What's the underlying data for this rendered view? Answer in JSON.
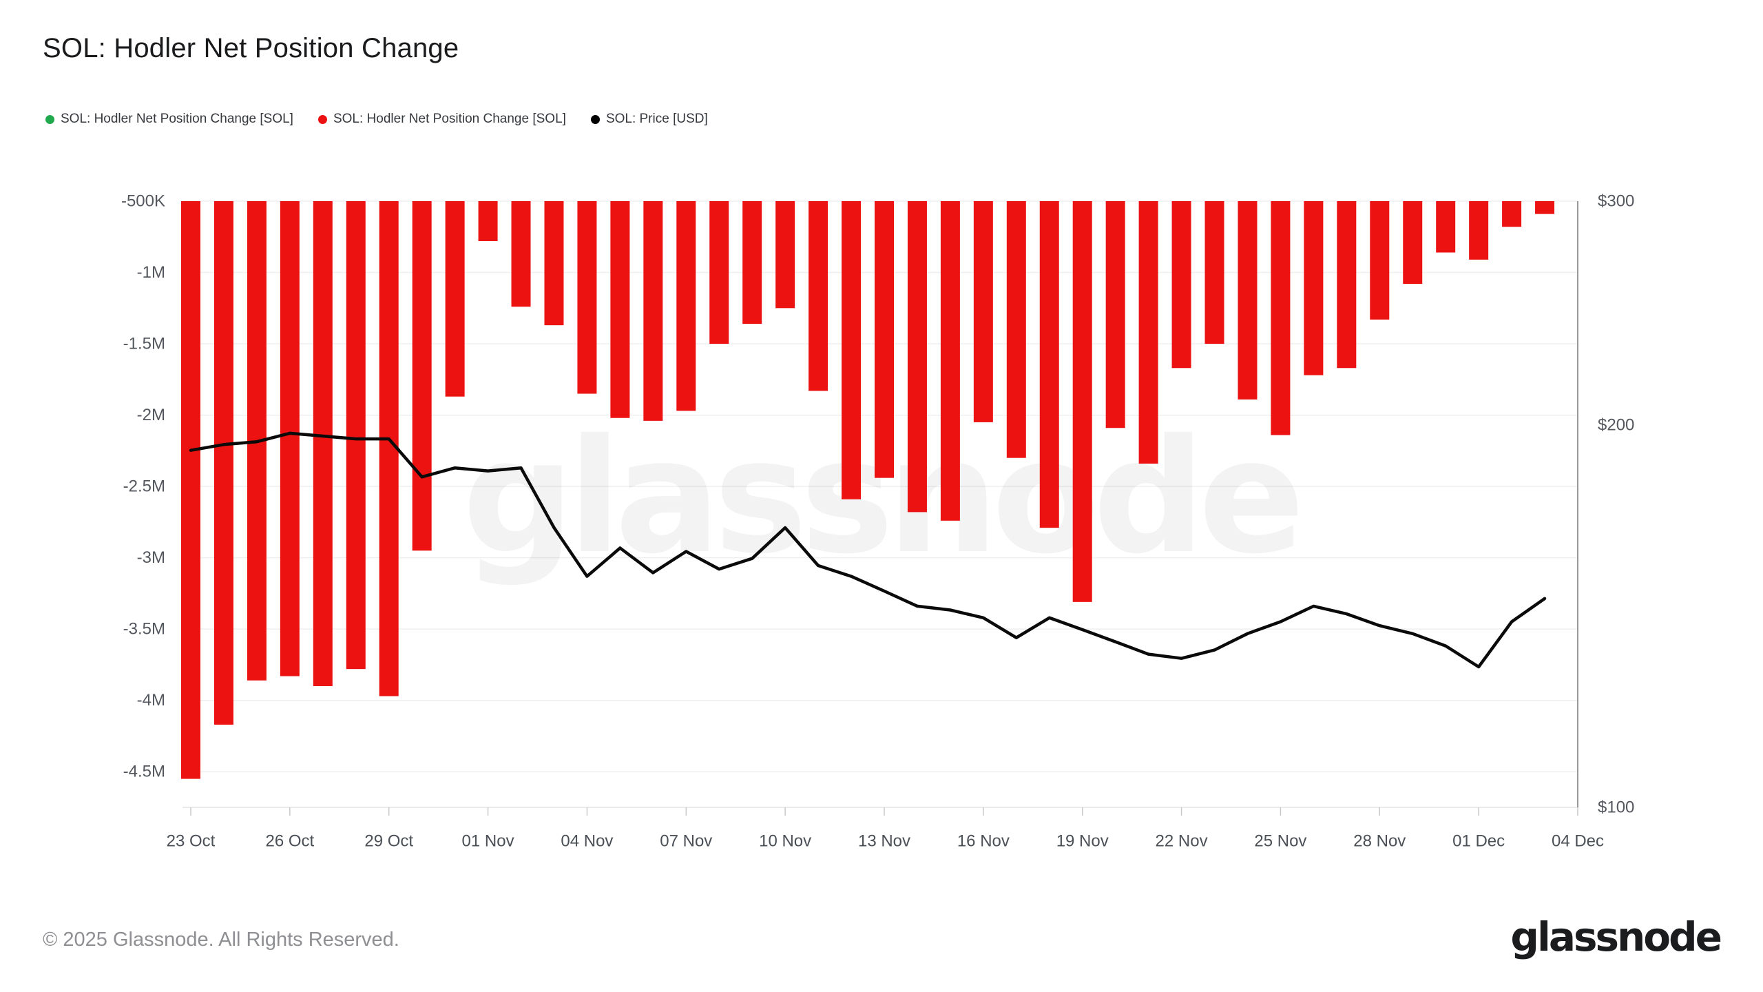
{
  "page": {
    "title": "SOL: Hodler Net Position Change"
  },
  "legend": {
    "items": [
      {
        "label": "SOL: Hodler Net Position Change [SOL]",
        "color": "#21a94e"
      },
      {
        "label": "SOL: Hodler Net Position Change [SOL]",
        "color": "#ed1212"
      },
      {
        "label": "SOL: Price [USD]",
        "color": "#000000"
      }
    ]
  },
  "watermark": {
    "text": "glassnode"
  },
  "footer": {
    "copyright": "© 2025 Glassnode. All Rights Reserved.",
    "logo": "glassnode"
  },
  "chart_data": {
    "type": "bar",
    "title": "SOL: Hodler Net Position Change",
    "x_dates": [
      "23 Oct",
      "24 Oct",
      "25 Oct",
      "26 Oct",
      "27 Oct",
      "28 Oct",
      "29 Oct",
      "30 Oct",
      "31 Oct",
      "01 Nov",
      "02 Nov",
      "03 Nov",
      "04 Nov",
      "05 Nov",
      "06 Nov",
      "07 Nov",
      "08 Nov",
      "09 Nov",
      "10 Nov",
      "11 Nov",
      "12 Nov",
      "13 Nov",
      "14 Nov",
      "15 Nov",
      "16 Nov",
      "17 Nov",
      "18 Nov",
      "19 Nov",
      "20 Nov",
      "21 Nov",
      "22 Nov",
      "23 Nov",
      "24 Nov",
      "25 Nov",
      "26 Nov",
      "27 Nov",
      "28 Nov",
      "29 Nov",
      "30 Nov",
      "01 Dec",
      "02 Dec",
      "03 Dec"
    ],
    "x_tick_labels": [
      "23 Oct",
      "26 Oct",
      "29 Oct",
      "01 Nov",
      "04 Nov",
      "07 Nov",
      "10 Nov",
      "13 Nov",
      "16 Nov",
      "19 Nov",
      "22 Nov",
      "25 Nov",
      "28 Nov",
      "01 Dec",
      "04 Dec"
    ],
    "left_axis": {
      "ticks": [
        "-500K",
        "-1M",
        "-1.5M",
        "-2M",
        "-2.5M",
        "-3M",
        "-3.5M",
        "-4M",
        "-4.5M"
      ],
      "tick_values": [
        -500000,
        -1000000,
        -1500000,
        -2000000,
        -2500000,
        -3000000,
        -3500000,
        -4000000,
        -4500000
      ],
      "range": [
        -500000,
        -4750000
      ],
      "grid": true
    },
    "right_axis": {
      "scale": "log",
      "ticks": [
        "$300",
        "$200",
        "$100"
      ],
      "tick_values": [
        300,
        200,
        100
      ],
      "range": [
        300,
        100
      ]
    },
    "legend_position": "top-left",
    "series": [
      {
        "name": "SOL: Hodler Net Position Change [SOL]",
        "type": "bar",
        "color": "#ed1212",
        "yaxis": "left",
        "values": [
          -4550000,
          -4170000,
          -3860000,
          -3830000,
          -3900000,
          -3780000,
          -3970000,
          -2950000,
          -1870000,
          -780000,
          -1240000,
          -1370000,
          -1850000,
          -2020000,
          -2040000,
          -1970000,
          -1500000,
          -1360000,
          -1250000,
          -1830000,
          -2590000,
          -2440000,
          -2680000,
          -2740000,
          -2050000,
          -2300000,
          -2790000,
          -3310000,
          -2090000,
          -2340000,
          -1670000,
          -1500000,
          -1890000,
          -2140000,
          -1720000,
          -1670000,
          -1330000,
          -1080000,
          -860000,
          -910000,
          -680000,
          -590000
        ]
      },
      {
        "name": "SOL: Price [USD]",
        "type": "line",
        "color": "#0a0a0a",
        "yaxis": "right",
        "values": [
          191,
          193,
          194,
          197,
          196,
          195,
          195,
          182,
          185,
          184,
          185,
          166,
          152,
          160,
          153,
          159,
          154,
          157,
          166,
          155,
          152,
          148,
          144,
          143,
          141,
          136,
          141,
          138,
          135,
          132,
          131,
          133,
          137,
          140,
          144,
          142,
          139,
          137,
          134,
          129,
          140,
          146
        ]
      }
    ]
  }
}
